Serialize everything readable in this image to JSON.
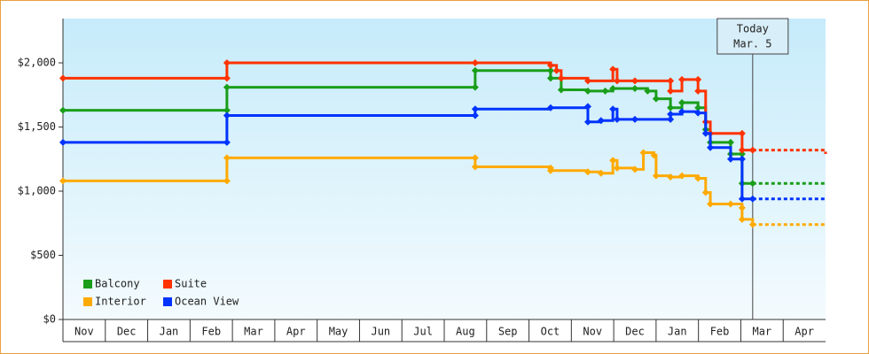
{
  "chart_data": {
    "type": "step-line",
    "xlim": [
      0,
      18
    ],
    "xticks": [
      {
        "value": 0,
        "label": "Nov"
      },
      {
        "value": 1,
        "label": "Dec"
      },
      {
        "value": 2,
        "label": "Jan"
      },
      {
        "value": 3,
        "label": "Feb"
      },
      {
        "value": 4,
        "label": "Mar"
      },
      {
        "value": 5,
        "label": "Apr"
      },
      {
        "value": 6,
        "label": "May"
      },
      {
        "value": 7,
        "label": "Jun"
      },
      {
        "value": 8,
        "label": "Jul"
      },
      {
        "value": 9,
        "label": "Aug"
      },
      {
        "value": 10,
        "label": "Sep"
      },
      {
        "value": 11,
        "label": "Oct"
      },
      {
        "value": 12,
        "label": "Nov"
      },
      {
        "value": 13,
        "label": "Dec"
      },
      {
        "value": 14,
        "label": "Jan"
      },
      {
        "value": 15,
        "label": "Feb"
      },
      {
        "value": 16,
        "label": "Mar"
      },
      {
        "value": 17,
        "label": "Apr"
      }
    ],
    "ylim": [
      0,
      2345
    ],
    "yticks": [
      {
        "value": 0,
        "label": "$0"
      },
      {
        "value": 500,
        "label": "$500"
      },
      {
        "value": 1000,
        "label": "$1,000"
      },
      {
        "value": 1500,
        "label": "$1,500"
      },
      {
        "value": 2000,
        "label": "$2,000"
      }
    ],
    "annotation": {
      "lines": [
        "Today",
        "Mar. 5"
      ],
      "x": 16.28
    },
    "legend": "lower left",
    "series": [
      {
        "name": "Balcony",
        "color": "#1a9e1a",
        "x": [
          0,
          3.87,
          3.87,
          9.73,
          9.73,
          11.51,
          11.51,
          11.76,
          12.39,
          12.8,
          12.98,
          13.5,
          13.8,
          14.0,
          14.34,
          14.61,
          14.99,
          15.17,
          15.28,
          15.76,
          15.76,
          16.03,
          16.03,
          16.28,
          18
        ],
        "values": [
          1630,
          1630,
          1810,
          1810,
          1940,
          1940,
          1880,
          1790,
          1780,
          1780,
          1800,
          1800,
          1780,
          1720,
          1650,
          1690,
          1650,
          1480,
          1380,
          1380,
          1290,
          1290,
          1060,
          1060,
          1060
        ]
      },
      {
        "name": "Suite",
        "color": "#ff3300",
        "x": [
          0,
          3.87,
          3.87,
          9.73,
          11.51,
          11.65,
          11.76,
          12.39,
          12.98,
          13.08,
          13.5,
          14.34,
          14.34,
          14.61,
          14.99,
          14.99,
          15.17,
          15.28,
          16.03,
          16.03,
          16.28,
          18
        ],
        "values": [
          1880,
          1880,
          2000,
          2000,
          1980,
          1940,
          1880,
          1860,
          1950,
          1860,
          1860,
          1860,
          1780,
          1870,
          1870,
          1780,
          1540,
          1450,
          1450,
          1320,
          1320,
          1290
        ]
      },
      {
        "name": "Interior",
        "color": "#ffaa00",
        "x": [
          0,
          3.87,
          3.87,
          9.73,
          9.73,
          11.51,
          11.51,
          12.39,
          12.7,
          12.98,
          13.08,
          13.5,
          13.7,
          13.95,
          14.0,
          14.34,
          14.61,
          14.99,
          15.17,
          15.28,
          15.76,
          16.03,
          16.03,
          16.28,
          18
        ],
        "values": [
          1080,
          1080,
          1260,
          1260,
          1190,
          1180,
          1160,
          1150,
          1140,
          1240,
          1180,
          1170,
          1300,
          1280,
          1120,
          1110,
          1120,
          1100,
          990,
          900,
          900,
          870,
          780,
          740,
          730
        ]
      },
      {
        "name": "Ocean View",
        "color": "#0033ff",
        "x": [
          0,
          3.87,
          3.87,
          9.73,
          9.73,
          11.51,
          12.39,
          12.39,
          12.7,
          12.98,
          13.08,
          13.5,
          14.34,
          14.34,
          14.61,
          14.99,
          15.17,
          15.28,
          15.76,
          16.03,
          16.03,
          16.28,
          18
        ],
        "values": [
          1380,
          1380,
          1590,
          1590,
          1640,
          1650,
          1660,
          1540,
          1550,
          1640,
          1560,
          1560,
          1560,
          1600,
          1620,
          1610,
          1450,
          1340,
          1250,
          1250,
          940,
          940,
          940
        ]
      }
    ]
  }
}
